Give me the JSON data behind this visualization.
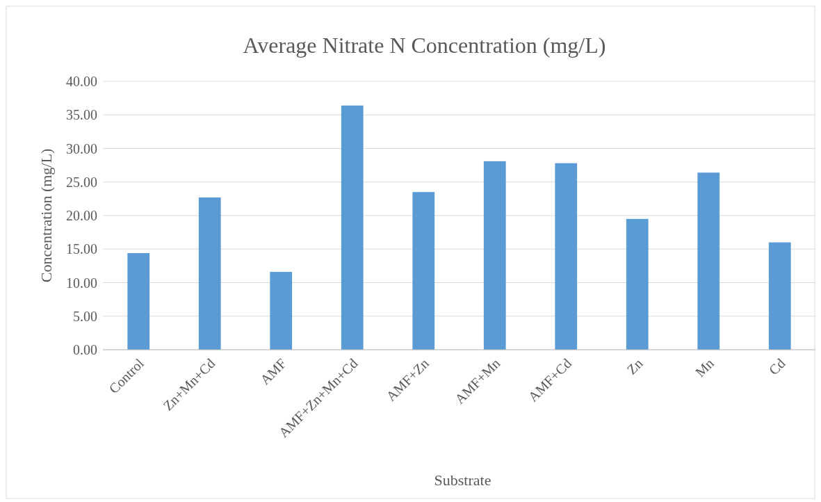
{
  "chart_data": {
    "type": "bar",
    "title": "Average Nitrate N Concentration (mg/L)",
    "xlabel": "Substrate",
    "ylabel": "Concentration (mg/L)",
    "categories": [
      "Control",
      "Zn+Mn+Cd",
      "AMF",
      "AMF+Zn+Mn+Cd",
      "AMF+Zn",
      "AMF+Mn",
      "AMF+Cd",
      "Zn",
      "Mn",
      "Cd"
    ],
    "values": [
      14.4,
      22.7,
      11.6,
      36.4,
      23.5,
      28.1,
      27.8,
      19.5,
      26.4,
      16.0
    ],
    "color": "#5b9bd5",
    "ylim": [
      0,
      40
    ],
    "yticks": [
      {
        "value": 0,
        "label": "0.00"
      },
      {
        "value": 5,
        "label": "5.00"
      },
      {
        "value": 10,
        "label": "10.00"
      },
      {
        "value": 15,
        "label": "15.00"
      },
      {
        "value": 20,
        "label": "20.00"
      },
      {
        "value": 25,
        "label": "25.00"
      },
      {
        "value": 30,
        "label": "30.00"
      },
      {
        "value": 35,
        "label": "35.00"
      },
      {
        "value": 40,
        "label": "40.00"
      }
    ],
    "grid": "y"
  }
}
